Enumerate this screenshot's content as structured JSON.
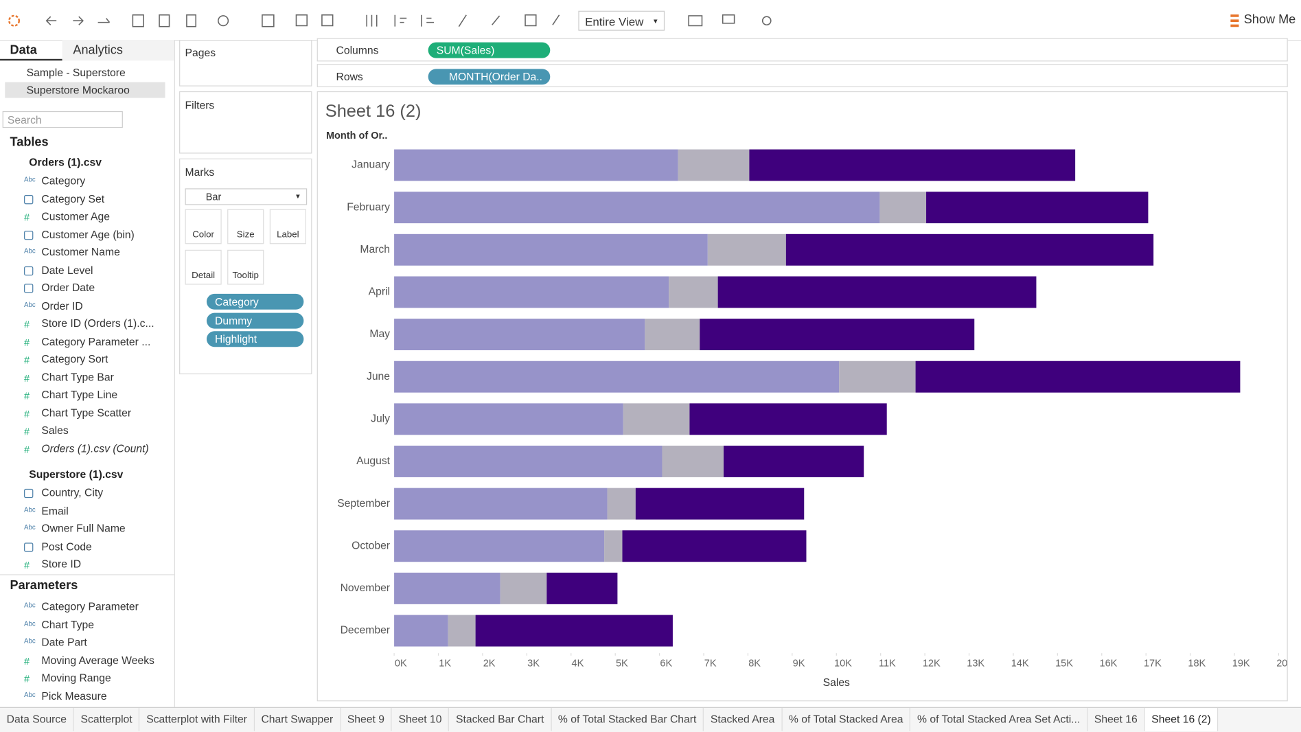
{
  "toolbar": {
    "view": "Entire View",
    "show_me": "Show Me"
  },
  "data_pane": {
    "tabs": [
      "Data",
      "Analytics"
    ],
    "sources": [
      "Sample - Superstore",
      "Superstore Mockaroo"
    ],
    "search": "Search",
    "tables_title": "Tables",
    "tables": [
      {
        "name": "Orders (1).csv",
        "fields": [
          {
            "icon": "Abc",
            "name": "Category"
          },
          {
            "name": "Category Set"
          },
          {
            "icon": "#",
            "name": "Customer Age"
          },
          {
            "name": "Customer Age (bin)"
          },
          {
            "icon": "Abc",
            "name": "Customer Name"
          },
          {
            "name": "Date Level"
          },
          {
            "name": "Order Date"
          },
          {
            "icon": "Abc",
            "name": "Order ID"
          },
          {
            "icon": "#",
            "name": "Store ID (Orders (1).c..."
          },
          {
            "icon": "#",
            "name": "Category Parameter ..."
          },
          {
            "icon": "#",
            "name": "Category Sort"
          },
          {
            "icon": "#",
            "name": "Chart Type Bar"
          },
          {
            "icon": "#",
            "name": "Chart Type Line"
          },
          {
            "icon": "#",
            "name": "Chart Type Scatter"
          },
          {
            "icon": "#",
            "name": "Sales"
          },
          {
            "icon": "#",
            "name": "Orders (1).csv (Count)"
          }
        ]
      },
      {
        "name": "Superstore (1).csv",
        "fields": [
          {
            "name": "Country, City"
          },
          {
            "icon": "Abc",
            "name": "Email"
          },
          {
            "icon": "Abc",
            "name": "Owner Full Name"
          },
          {
            "name": "Post Code"
          },
          {
            "icon": "#",
            "name": "Store ID"
          }
        ]
      }
    ],
    "parameters_title": "Parameters",
    "parameters": [
      {
        "icon": "Abc",
        "name": "Category Parameter"
      },
      {
        "icon": "Abc",
        "name": "Chart Type"
      },
      {
        "icon": "Abc",
        "name": "Date Part"
      },
      {
        "icon": "#",
        "name": "Moving Average Weeks"
      },
      {
        "icon": "#",
        "name": "Moving Range"
      },
      {
        "icon": "Abc",
        "name": "Pick Measure"
      }
    ]
  },
  "pages": "Pages",
  "filters": "Filters",
  "marks": {
    "title": "Marks",
    "type": "Bar",
    "buttons": [
      "Color",
      "Size",
      "Label",
      "Detail",
      "Tooltip"
    ],
    "pills": [
      "Category",
      "Dummy",
      "Highlight"
    ]
  },
  "shelves": {
    "columns_label": "Columns",
    "columns": "SUM(Sales)",
    "rows_label": "Rows",
    "rows": "MONTH(Order Da.."
  },
  "chart_data": {
    "type": "bar",
    "orientation": "horizontal",
    "stacked": true,
    "title": "Sheet 16 (2)",
    "row_header": "Month of Or..",
    "x_label": "Sales",
    "categories": [
      "January",
      "February",
      "March",
      "April",
      "May",
      "June",
      "July",
      "August",
      "September",
      "October",
      "November",
      "December"
    ],
    "series": [
      {
        "color": "#9793c9",
        "values": [
          6420,
          10980,
          7090,
          6210,
          5670,
          10060,
          5180,
          6060,
          4820,
          4750,
          2400,
          1220
        ]
      },
      {
        "color": "#b4b1bd",
        "values": [
          1610,
          1050,
          1770,
          1110,
          1240,
          1730,
          1500,
          1390,
          640,
          410,
          1050,
          620
        ]
      },
      {
        "color": "#3f007d",
        "values": [
          7370,
          5020,
          8310,
          7200,
          6210,
          7340,
          4460,
          3170,
          3810,
          4160,
          1600,
          4460
        ]
      }
    ],
    "xlim": [
      0,
      20000
    ],
    "xticks": [
      {
        "value": 0,
        "label": "0K"
      },
      {
        "value": 1000,
        "label": "1K"
      },
      {
        "value": 2000,
        "label": "2K"
      },
      {
        "value": 3000,
        "label": "3K"
      },
      {
        "value": 4000,
        "label": "4K"
      },
      {
        "value": 5000,
        "label": "5K"
      },
      {
        "value": 6000,
        "label": "6K"
      },
      {
        "value": 7000,
        "label": "7K"
      },
      {
        "value": 8000,
        "label": "8K"
      },
      {
        "value": 9000,
        "label": "9K"
      },
      {
        "value": 10000,
        "label": "10K"
      },
      {
        "value": 11000,
        "label": "11K"
      },
      {
        "value": 12000,
        "label": "12K"
      },
      {
        "value": 13000,
        "label": "13K"
      },
      {
        "value": 14000,
        "label": "14K"
      },
      {
        "value": 15000,
        "label": "15K"
      },
      {
        "value": 16000,
        "label": "16K"
      },
      {
        "value": 17000,
        "label": "17K"
      },
      {
        "value": 18000,
        "label": "18K"
      },
      {
        "value": 19000,
        "label": "19K"
      },
      {
        "value": 20000,
        "label": "20K"
      }
    ],
    "grid": false
  },
  "sheet_tabs": [
    "Data Source",
    "Scatterplot",
    "Scatterplot with Filter",
    "Chart Swapper",
    "Sheet 9",
    "Sheet 10",
    "Stacked Bar Chart",
    "% of Total Stacked Bar Chart",
    "Stacked Area",
    "% of Total Stacked Area",
    "% of Total Stacked Area Set Acti...",
    "Sheet 16",
    "Sheet 16 (2)"
  ]
}
